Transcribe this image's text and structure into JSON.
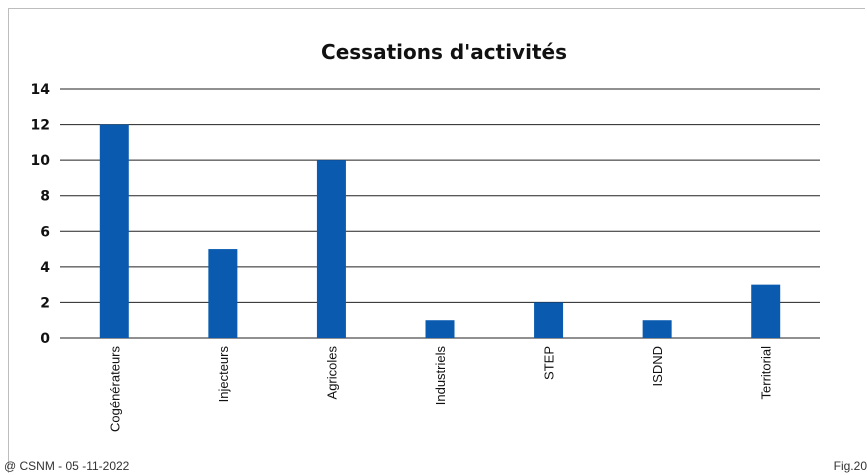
{
  "chart_data": {
    "type": "bar",
    "title": "Cessations d'activités",
    "categories": [
      "Cogénérateurs",
      "Injecteurs",
      "Agricoles",
      "Industriels",
      "STEP",
      "ISDND",
      "Territorial"
    ],
    "values": [
      12,
      5,
      10,
      1,
      2,
      1,
      3
    ],
    "xlabel": "",
    "ylabel": "",
    "ylim": [
      0,
      14
    ],
    "yticks": [
      0,
      2,
      4,
      6,
      8,
      10,
      12,
      14
    ],
    "grid": true,
    "bar_color": "#0a5bb0"
  },
  "footer": {
    "copyright": "@ CSNM - 05 -11-2022",
    "figure_ref": "Fig.20"
  }
}
